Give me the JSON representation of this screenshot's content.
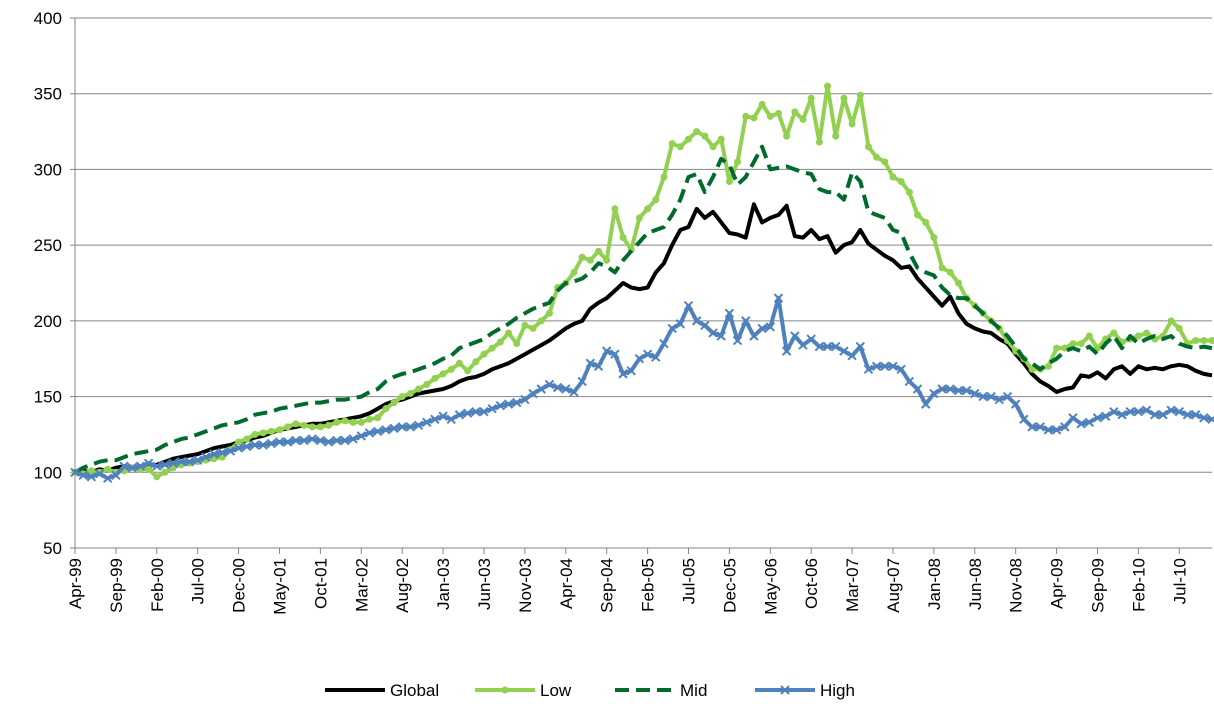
{
  "chart_data": {
    "type": "line",
    "categories": [
      "Apr-99",
      null,
      null,
      null,
      null,
      "Sep-99",
      null,
      null,
      null,
      null,
      "Feb-00",
      null,
      null,
      null,
      null,
      "Jul-00",
      null,
      null,
      null,
      null,
      "Dec-00",
      null,
      null,
      null,
      null,
      "May-01",
      null,
      null,
      null,
      null,
      "Oct-01",
      null,
      null,
      null,
      null,
      "Mar-02",
      null,
      null,
      null,
      null,
      "Aug-02",
      null,
      null,
      null,
      null,
      "Jan-03",
      null,
      null,
      null,
      null,
      "Jun-03",
      null,
      null,
      null,
      null,
      "Nov-03",
      null,
      null,
      null,
      null,
      "Apr-04",
      null,
      null,
      null,
      null,
      "Sep-04",
      null,
      null,
      null,
      null,
      "Feb-05",
      null,
      null,
      null,
      null,
      "Jul-05",
      null,
      null,
      null,
      null,
      "Dec-05",
      null,
      null,
      null,
      null,
      "May-06",
      null,
      null,
      null,
      null,
      "Oct-06",
      null,
      null,
      null,
      null,
      "Mar-07",
      null,
      null,
      null,
      null,
      "Aug-07",
      null,
      null,
      null,
      null,
      "Jan-08",
      null,
      null,
      null,
      null,
      "Jun-08",
      null,
      null,
      null,
      null,
      "Nov-08",
      null,
      null,
      null,
      null,
      "Apr-09",
      null,
      null,
      null,
      null,
      "Sep-09",
      null,
      null,
      null,
      null,
      "Feb-10",
      null,
      null,
      null,
      null,
      "Jul-10",
      null,
      null,
      null,
      null
    ],
    "series": [
      {
        "name": "Global",
        "color": "#000000",
        "dash": false,
        "marker": null,
        "values": [
          100,
          101,
          100,
          102,
          101,
          103,
          104,
          103,
          104,
          104,
          105,
          107,
          109,
          110,
          111,
          112,
          114,
          116,
          117,
          118,
          120,
          121,
          123,
          124,
          126,
          128,
          129,
          130,
          131,
          132,
          132,
          133,
          134,
          135,
          136,
          137,
          139,
          142,
          145,
          147,
          148,
          150,
          152,
          153,
          154,
          155,
          157,
          160,
          162,
          163,
          165,
          168,
          170,
          172,
          175,
          178,
          181,
          184,
          187,
          191,
          195,
          198,
          200,
          208,
          212,
          215,
          220,
          225,
          222,
          221,
          222,
          232,
          238,
          250,
          260,
          262,
          274,
          268,
          272,
          265,
          258,
          257,
          255,
          277,
          265,
          268,
          270,
          276,
          256,
          255,
          260,
          254,
          256,
          245,
          250,
          252,
          260,
          251,
          247,
          243,
          240,
          235,
          236,
          228,
          222,
          216,
          210,
          216,
          205,
          198,
          195,
          193,
          192,
          188,
          185,
          178,
          172,
          165,
          160,
          157,
          153,
          155,
          156,
          164,
          163,
          166,
          162,
          168,
          170,
          165,
          170,
          168,
          169,
          168,
          170,
          171,
          170,
          167,
          165,
          164
        ]
      },
      {
        "name": "Low",
        "color": "#92d050",
        "dash": false,
        "marker": "circle",
        "values": [
          100,
          99,
          101,
          100,
          102,
          100,
          101,
          103,
          102,
          102,
          97,
          100,
          103,
          105,
          106,
          107,
          108,
          109,
          110,
          115,
          120,
          122,
          125,
          126,
          127,
          128,
          130,
          132,
          131,
          130,
          130,
          131,
          133,
          134,
          133,
          133,
          135,
          136,
          142,
          146,
          150,
          152,
          155,
          158,
          162,
          165,
          168,
          172,
          167,
          173,
          178,
          182,
          186,
          192,
          185,
          197,
          195,
          200,
          205,
          222,
          225,
          232,
          242,
          240,
          246,
          240,
          274,
          255,
          247,
          268,
          274,
          280,
          295,
          317,
          315,
          320,
          325,
          322,
          315,
          320,
          292,
          305,
          335,
          334,
          343,
          335,
          337,
          322,
          338,
          333,
          347,
          318,
          355,
          322,
          347,
          330,
          349,
          315,
          308,
          305,
          295,
          292,
          285,
          270,
          265,
          255,
          235,
          232,
          225,
          215,
          210,
          205,
          200,
          195,
          187,
          180,
          175,
          168,
          168,
          170,
          182,
          182,
          185,
          185,
          190,
          182,
          188,
          192,
          186,
          188,
          190,
          192,
          188,
          190,
          200,
          195,
          185,
          187,
          187,
          187
        ]
      },
      {
        "name": "Mid",
        "color": "#006b2c",
        "dash": true,
        "marker": null,
        "values": [
          100,
          103,
          105,
          107,
          108,
          108,
          110,
          112,
          113,
          114,
          115,
          118,
          120,
          122,
          123,
          125,
          127,
          129,
          131,
          132,
          133,
          135,
          138,
          139,
          140,
          142,
          143,
          144,
          145,
          146,
          146,
          147,
          148,
          148,
          149,
          150,
          153,
          155,
          160,
          163,
          165,
          166,
          168,
          170,
          172,
          175,
          177,
          182,
          184,
          186,
          188,
          192,
          195,
          198,
          202,
          205,
          208,
          210,
          212,
          220,
          225,
          226,
          228,
          232,
          238,
          236,
          232,
          240,
          246,
          252,
          258,
          260,
          262,
          270,
          280,
          295,
          297,
          285,
          295,
          307,
          303,
          290,
          295,
          305,
          315,
          300,
          301,
          302,
          300,
          298,
          297,
          287,
          285,
          285,
          280,
          298,
          292,
          272,
          270,
          268,
          260,
          258,
          245,
          235,
          232,
          230,
          222,
          217,
          215,
          215,
          210,
          205,
          200,
          195,
          190,
          183,
          175,
          172,
          168,
          172,
          175,
          180,
          182,
          180,
          183,
          178,
          185,
          190,
          182,
          190,
          185,
          188,
          190,
          188,
          190,
          185,
          183,
          182,
          183,
          182
        ]
      },
      {
        "name": "High",
        "color": "#4f81bd",
        "dash": false,
        "marker": "x",
        "values": [
          100,
          98,
          97,
          99,
          96,
          98,
          104,
          103,
          104,
          106,
          104,
          105,
          106,
          107,
          107,
          108,
          110,
          112,
          113,
          114,
          116,
          117,
          118,
          118,
          119,
          120,
          120,
          121,
          121,
          122,
          121,
          120,
          121,
          121,
          122,
          124,
          126,
          127,
          128,
          129,
          130,
          130,
          131,
          133,
          135,
          137,
          135,
          138,
          139,
          140,
          140,
          142,
          144,
          145,
          146,
          148,
          152,
          155,
          158,
          156,
          155,
          153,
          160,
          172,
          170,
          180,
          178,
          165,
          167,
          175,
          178,
          176,
          185,
          195,
          198,
          210,
          200,
          197,
          192,
          190,
          205,
          187,
          200,
          190,
          195,
          196,
          215,
          180,
          190,
          184,
          188,
          183,
          183,
          183,
          180,
          177,
          183,
          168,
          170,
          170,
          170,
          168,
          160,
          155,
          145,
          152,
          155,
          155,
          154,
          154,
          152,
          150,
          150,
          148,
          150,
          145,
          135,
          130,
          130,
          128,
          128,
          130,
          136,
          132,
          133,
          136,
          137,
          140,
          138,
          140,
          140,
          141,
          138,
          138,
          141,
          140,
          138,
          138,
          136,
          135
        ]
      }
    ],
    "ylim": [
      50,
      400
    ],
    "yticks": [
      50,
      100,
      150,
      200,
      250,
      300,
      350,
      400
    ],
    "grid": true,
    "legend": "bottom"
  }
}
